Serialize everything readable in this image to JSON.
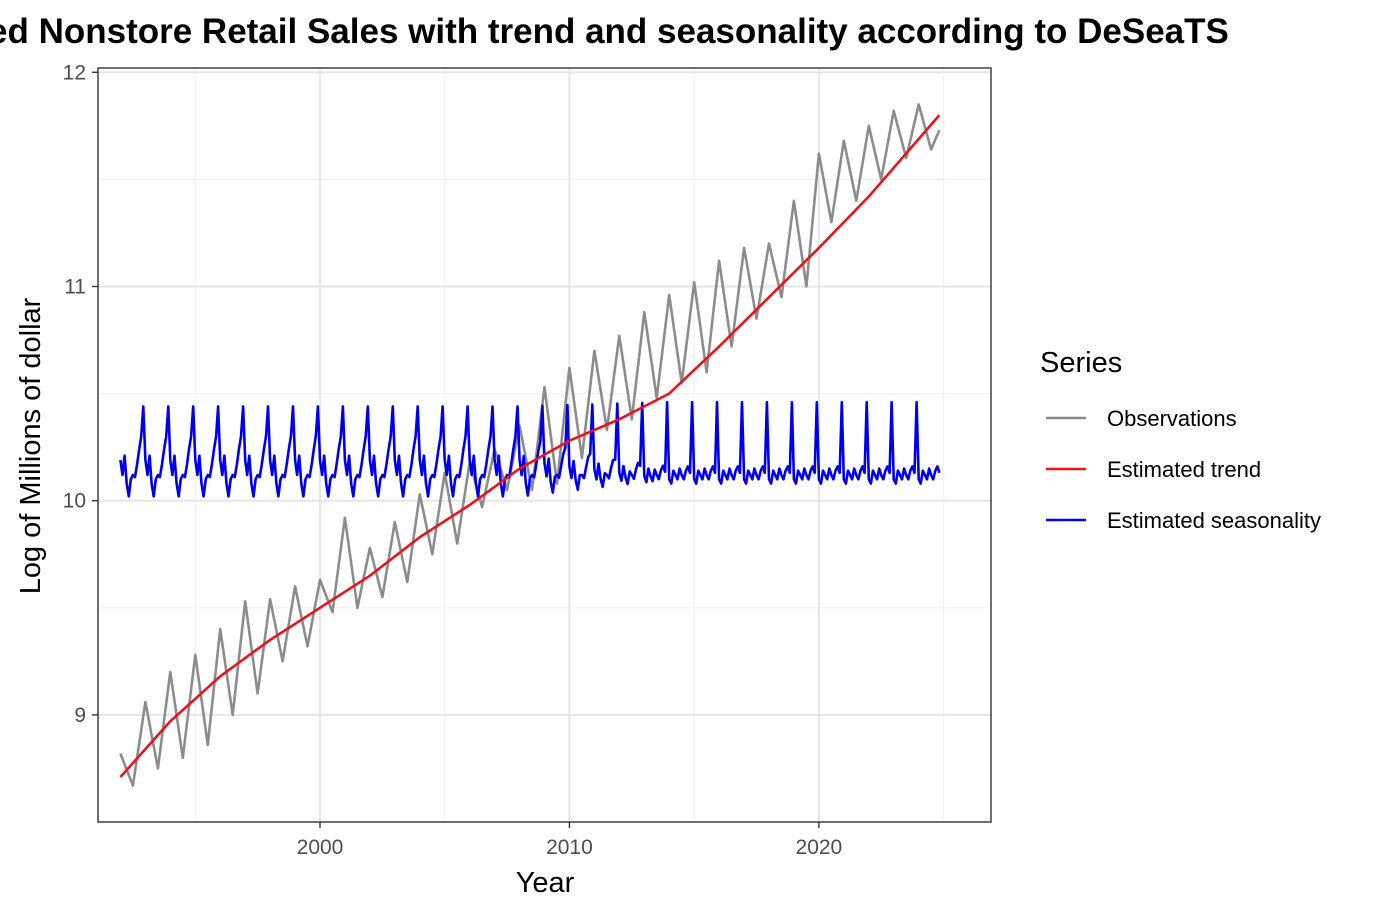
{
  "chart_data": {
    "type": "line",
    "title": "ed Nonstore Retail Sales with trend and seasonality according to DeSeaTS",
    "xlabel": "Year",
    "ylabel": "Log of Millions of dollar",
    "xlim": [
      1991.1,
      2026.9
    ],
    "ylim": [
      8.5,
      12.02
    ],
    "x_ticks": [
      2000,
      2010,
      2020
    ],
    "x_tick_labels": [
      "2000",
      "2010",
      "2020"
    ],
    "y_ticks": [
      9,
      10,
      11,
      12
    ],
    "y_tick_labels": [
      "9",
      "10",
      "11",
      "12"
    ],
    "grid": true,
    "x_start": 1992.0,
    "x_end": 2024.83,
    "legend": {
      "title": "Series",
      "placement": "right",
      "entries": [
        {
          "label": "Observations",
          "color": "#8c8c8c"
        },
        {
          "label": "Estimated trend",
          "color": "#e8141c"
        },
        {
          "label": "Estimated seasonality",
          "color": "#0000ee"
        }
      ]
    },
    "series": [
      {
        "name": "Observations",
        "color": "#8c8c8c",
        "x": [
          1992.0,
          1992.5,
          1993.0,
          1993.5,
          1994.0,
          1994.5,
          1995.0,
          1995.5,
          1996.0,
          1996.5,
          1997.0,
          1997.5,
          1998.0,
          1998.5,
          1999.0,
          1999.5,
          2000.0,
          2000.5,
          2001.0,
          2001.5,
          2002.0,
          2002.5,
          2003.0,
          2003.5,
          2004.0,
          2004.5,
          2005.0,
          2005.5,
          2006.0,
          2006.5,
          2007.0,
          2007.5,
          2008.0,
          2008.5,
          2009.0,
          2009.5,
          2010.0,
          2010.5,
          2011.0,
          2011.5,
          2012.0,
          2012.5,
          2013.0,
          2013.5,
          2014.0,
          2014.5,
          2015.0,
          2015.5,
          2016.0,
          2016.5,
          2017.0,
          2017.5,
          2018.0,
          2018.5,
          2019.0,
          2019.5,
          2020.0,
          2020.5,
          2021.0,
          2021.5,
          2022.0,
          2022.5,
          2023.0,
          2023.5,
          2024.0,
          2024.5,
          2024.83
        ],
        "values": [
          8.82,
          8.67,
          9.06,
          8.75,
          9.2,
          8.8,
          9.28,
          8.86,
          9.4,
          9.0,
          9.53,
          9.1,
          9.54,
          9.25,
          9.6,
          9.32,
          9.63,
          9.48,
          9.92,
          9.5,
          9.78,
          9.55,
          9.9,
          9.62,
          10.03,
          9.75,
          10.13,
          9.8,
          10.18,
          9.97,
          10.24,
          10.05,
          10.35,
          10.05,
          10.53,
          10.08,
          10.62,
          10.2,
          10.7,
          10.33,
          10.77,
          10.38,
          10.88,
          10.48,
          10.96,
          10.55,
          11.02,
          10.6,
          11.12,
          10.72,
          11.18,
          10.85,
          11.2,
          10.95,
          11.4,
          11.0,
          11.62,
          11.3,
          11.68,
          11.4,
          11.75,
          11.5,
          11.82,
          11.6,
          11.85,
          11.64,
          11.73
        ]
      },
      {
        "name": "Estimated trend",
        "color": "#e8141c",
        "x": [
          1992.0,
          1994.0,
          1996.0,
          1998.0,
          2000.0,
          2002.0,
          2004.0,
          2006.0,
          2008.0,
          2010.0,
          2012.0,
          2014.0,
          2016.0,
          2018.0,
          2020.0,
          2022.0,
          2024.83
        ],
        "values": [
          8.71,
          8.97,
          9.18,
          9.35,
          9.5,
          9.65,
          9.83,
          9.98,
          10.15,
          10.28,
          10.38,
          10.5,
          10.72,
          10.95,
          11.18,
          11.42,
          11.8
        ]
      },
      {
        "name": "Estimated seasonality",
        "color": "#0000ee",
        "x_start": 1992.0,
        "x_end": 2024.83,
        "monthly_pattern_early": [
          10.19,
          10.12,
          10.21,
          10.08,
          10.02,
          10.1,
          10.12,
          10.11,
          10.17,
          10.24,
          10.3,
          10.44
        ],
        "monthly_pattern_late": [
          10.1,
          10.08,
          10.14,
          10.12,
          10.1,
          10.15,
          10.12,
          10.1,
          10.14,
          10.16,
          10.13,
          10.46
        ],
        "values_by_month_description": "12-month repeating pattern, January to December"
      }
    ]
  }
}
